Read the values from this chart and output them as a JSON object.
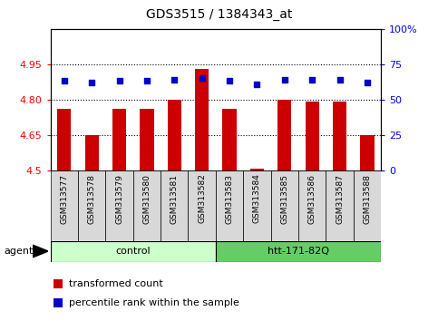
{
  "title": "GDS3515 / 1384343_at",
  "samples": [
    "GSM313577",
    "GSM313578",
    "GSM313579",
    "GSM313580",
    "GSM313581",
    "GSM313582",
    "GSM313583",
    "GSM313584",
    "GSM313585",
    "GSM313586",
    "GSM313587",
    "GSM313588"
  ],
  "bar_values": [
    4.76,
    4.65,
    4.76,
    4.76,
    4.8,
    4.93,
    4.76,
    4.505,
    4.8,
    4.79,
    4.79,
    4.65
  ],
  "percentile_values": [
    63,
    62,
    63,
    63,
    64,
    65,
    63,
    61,
    64,
    64,
    64,
    62
  ],
  "bar_color": "#cc0000",
  "dot_color": "#0000cc",
  "ylim_left": [
    4.5,
    5.1
  ],
  "ylim_right": [
    0,
    100
  ],
  "yticks_left": [
    4.5,
    4.65,
    4.8,
    4.95
  ],
  "ytick_labels_left": [
    "4.5",
    "4.65",
    "4.80",
    "4.95"
  ],
  "yticks_right": [
    0,
    25,
    50,
    75,
    100
  ],
  "ytick_labels_right": [
    "0",
    "25",
    "50",
    "75",
    "100%"
  ],
  "hlines": [
    4.65,
    4.8,
    4.95
  ],
  "top_hline": 5.1,
  "groups": [
    {
      "label": "control",
      "start": 0,
      "end": 5,
      "color": "#ccffcc"
    },
    {
      "label": "htt-171-82Q",
      "start": 6,
      "end": 11,
      "color": "#66cc66"
    }
  ],
  "agent_label": "agent",
  "legend_items": [
    {
      "color": "#cc0000",
      "label": "transformed count"
    },
    {
      "color": "#0000cc",
      "label": "percentile rank within the sample"
    }
  ],
  "bar_width": 0.5,
  "background_color": "#ffffff",
  "col_bg_color": "#d8d8d8",
  "group_border_color": "#000000",
  "spine_color": "#000000"
}
